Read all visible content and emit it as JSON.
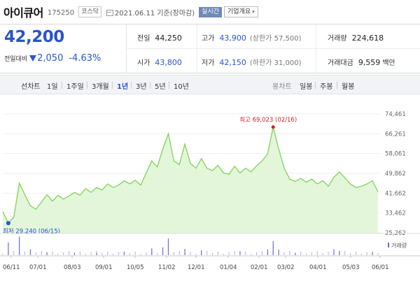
{
  "header": {
    "stock_name": "아이큐어",
    "stock_code": "175250",
    "market": "코스닥",
    "date": "2021.06.11 기준(장마감)",
    "realtime": "실시간",
    "company_info": "기업개요"
  },
  "price": {
    "current": "42,200",
    "change_label": "전일대비",
    "change": "2,050",
    "change_pct": "-4.63%"
  },
  "stats": {
    "prev_close_label": "전일",
    "prev_close": "44,250",
    "high_label": "고가",
    "high": "43,900",
    "upper_limit": "(상한가 57,500)",
    "volume_label": "거래량",
    "volume": "224,618",
    "open_label": "시가",
    "open": "43,800",
    "low_label": "저가",
    "low": "42,150",
    "lower_limit": "(하한가 31,000)",
    "trade_value_label": "거래대금",
    "trade_value": "9,559",
    "trade_value_unit": "백만"
  },
  "tabs": {
    "line_chart": "선차트",
    "periods": [
      "1일",
      "1주일",
      "3개월",
      "1년",
      "3년",
      "5년",
      "10년"
    ],
    "active_period": "1년",
    "candle_chart": "봉차트",
    "candle_periods": [
      "일봉",
      "주봉",
      "월봉"
    ]
  },
  "colors": {
    "price_down": "#2955c9",
    "chart_line": "#7ed35a",
    "chart_fill": "#e4f6da",
    "high_marker": "#d62222",
    "low_marker": "#2955c9",
    "volume_bar": "#6b6fc8"
  },
  "chart_data": {
    "type": "area",
    "ylim": [
      25262,
      74461
    ],
    "y_ticks": [
      "74,461",
      "66,261",
      "58,061",
      "49,862",
      "41,662",
      "33,462",
      "25,262"
    ],
    "x_tick_labels": [
      "06/11",
      "07/01",
      "08/03",
      "09/01",
      "10/05",
      "11/02",
      "12/01",
      "01/04",
      "02/01",
      "03/02",
      "04/01",
      "05/03",
      "06/01"
    ],
    "high_annotation": "최고 69,023 (02/16)",
    "low_annotation": "최저 29,240 (06/15)",
    "volume_legend": "거래량",
    "price_series": [
      {
        "x": "06/11",
        "y": 34000
      },
      {
        "x": "06/15",
        "y": 29240
      },
      {
        "x": "06/18",
        "y": 31800
      },
      {
        "x": "06/22",
        "y": 45800
      },
      {
        "x": "06/24",
        "y": 41000
      },
      {
        "x": "06/28",
        "y": 36500
      },
      {
        "x": "07/01",
        "y": 35000
      },
      {
        "x": "07/07",
        "y": 38000
      },
      {
        "x": "07/13",
        "y": 41000
      },
      {
        "x": "07/17",
        "y": 38400
      },
      {
        "x": "07/22",
        "y": 40800
      },
      {
        "x": "07/27",
        "y": 39200
      },
      {
        "x": "08/03",
        "y": 40500
      },
      {
        "x": "08/10",
        "y": 42000
      },
      {
        "x": "08/17",
        "y": 40800
      },
      {
        "x": "08/24",
        "y": 43500
      },
      {
        "x": "09/01",
        "y": 42000
      },
      {
        "x": "09/08",
        "y": 44000
      },
      {
        "x": "09/14",
        "y": 43000
      },
      {
        "x": "09/21",
        "y": 45500
      },
      {
        "x": "09/25",
        "y": 44000
      },
      {
        "x": "10/05",
        "y": 45000
      },
      {
        "x": "10/12",
        "y": 46800
      },
      {
        "x": "10/16",
        "y": 45500
      },
      {
        "x": "10/22",
        "y": 47000
      },
      {
        "x": "10/27",
        "y": 45000
      },
      {
        "x": "11/02",
        "y": 50000
      },
      {
        "x": "11/05",
        "y": 55000
      },
      {
        "x": "11/09",
        "y": 52500
      },
      {
        "x": "11/13",
        "y": 60000
      },
      {
        "x": "11/17",
        "y": 66261
      },
      {
        "x": "11/19",
        "y": 55000
      },
      {
        "x": "11/23",
        "y": 53500
      },
      {
        "x": "11/26",
        "y": 62000
      },
      {
        "x": "11/30",
        "y": 54000
      },
      {
        "x": "12/01",
        "y": 52000
      },
      {
        "x": "12/04",
        "y": 56000
      },
      {
        "x": "12/08",
        "y": 52000
      },
      {
        "x": "12/11",
        "y": 51000
      },
      {
        "x": "12/16",
        "y": 53200
      },
      {
        "x": "12/21",
        "y": 50000
      },
      {
        "x": "12/28",
        "y": 49500
      },
      {
        "x": "01/04",
        "y": 52800
      },
      {
        "x": "01/11",
        "y": 50000
      },
      {
        "x": "01/18",
        "y": 52000
      },
      {
        "x": "01/25",
        "y": 50500
      },
      {
        "x": "02/01",
        "y": 53000
      },
      {
        "x": "02/05",
        "y": 55000
      },
      {
        "x": "02/10",
        "y": 58000
      },
      {
        "x": "02/16",
        "y": 69023
      },
      {
        "x": "02/19",
        "y": 60000
      },
      {
        "x": "02/24",
        "y": 52000
      },
      {
        "x": "03/02",
        "y": 47500
      },
      {
        "x": "03/08",
        "y": 46500
      },
      {
        "x": "03/15",
        "y": 47800
      },
      {
        "x": "03/22",
        "y": 46200
      },
      {
        "x": "04/01",
        "y": 47500
      },
      {
        "x": "04/08",
        "y": 45500
      },
      {
        "x": "04/15",
        "y": 46800
      },
      {
        "x": "04/22",
        "y": 44500
      },
      {
        "x": "04/29",
        "y": 48200
      },
      {
        "x": "05/03",
        "y": 50500
      },
      {
        "x": "05/07",
        "y": 48000
      },
      {
        "x": "05/13",
        "y": 45500
      },
      {
        "x": "05/20",
        "y": 44000
      },
      {
        "x": "05/27",
        "y": 44500
      },
      {
        "x": "06/01",
        "y": 45500
      },
      {
        "x": "06/07",
        "y": 46800
      },
      {
        "x": "06/11",
        "y": 42200
      }
    ],
    "volume_series": [
      {
        "x": "06/15",
        "y": 0.65
      },
      {
        "x": "06/22",
        "y": 0.95
      },
      {
        "x": "06/28",
        "y": 0.3
      },
      {
        "x": "07/13",
        "y": 0.15
      },
      {
        "x": "08/10",
        "y": 0.12
      },
      {
        "x": "09/08",
        "y": 0.12
      },
      {
        "x": "10/12",
        "y": 0.16
      },
      {
        "x": "11/05",
        "y": 0.35
      },
      {
        "x": "11/13",
        "y": 0.4
      },
      {
        "x": "11/17",
        "y": 0.85
      },
      {
        "x": "11/26",
        "y": 0.32
      },
      {
        "x": "12/04",
        "y": 0.25
      },
      {
        "x": "01/11",
        "y": 0.2
      },
      {
        "x": "02/10",
        "y": 0.3
      },
      {
        "x": "02/16",
        "y": 0.72
      },
      {
        "x": "02/19",
        "y": 0.28
      },
      {
        "x": "03/08",
        "y": 0.12
      },
      {
        "x": "04/29",
        "y": 0.3
      },
      {
        "x": "05/03",
        "y": 0.22
      },
      {
        "x": "06/07",
        "y": 0.14
      }
    ]
  }
}
